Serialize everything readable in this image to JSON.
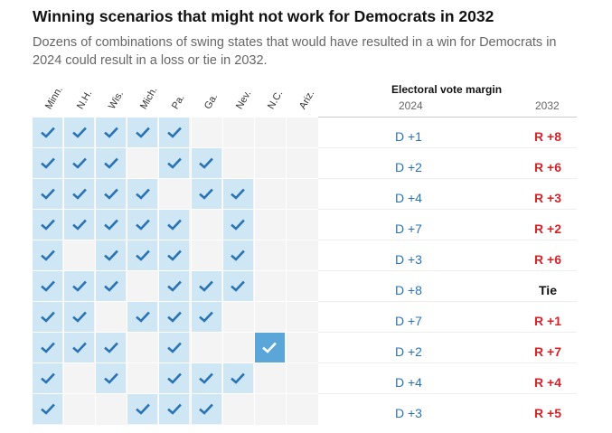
{
  "header": {
    "title": "Winning scenarios that might not work for Democrats in 2032",
    "subtitle": "Dozens of combinations of swing states that would have resulted in a win for Democrats in 2024 could result in a loss or tie in 2032."
  },
  "chart_data": {
    "type": "table",
    "states": [
      "Minn.",
      "N.H.",
      "Wis.",
      "Mich.",
      "Pa.",
      "Ga.",
      "Nev.",
      "N.C.",
      "Ariz."
    ],
    "margin_header": "Electoral vote margin",
    "columns": [
      "2024",
      "2032"
    ],
    "rows": [
      {
        "won": [
          1,
          1,
          1,
          1,
          1,
          0,
          0,
          0,
          0
        ],
        "margin_2024": "D +1",
        "margin_2032": "R +8"
      },
      {
        "won": [
          1,
          1,
          1,
          0,
          1,
          1,
          0,
          0,
          0
        ],
        "margin_2024": "D +2",
        "margin_2032": "R +6"
      },
      {
        "won": [
          1,
          1,
          1,
          1,
          0,
          1,
          1,
          0,
          0
        ],
        "margin_2024": "D +4",
        "margin_2032": "R +3"
      },
      {
        "won": [
          1,
          1,
          1,
          1,
          1,
          0,
          1,
          0,
          0
        ],
        "margin_2024": "D +7",
        "margin_2032": "R +2"
      },
      {
        "won": [
          1,
          0,
          1,
          1,
          1,
          0,
          1,
          0,
          0
        ],
        "margin_2024": "D +3",
        "margin_2032": "R +6"
      },
      {
        "won": [
          1,
          1,
          1,
          0,
          1,
          1,
          1,
          0,
          0
        ],
        "margin_2024": "D +8",
        "margin_2032": "Tie"
      },
      {
        "won": [
          1,
          1,
          0,
          1,
          1,
          1,
          0,
          0,
          0
        ],
        "margin_2024": "D +7",
        "margin_2032": "R +1"
      },
      {
        "won": [
          1,
          1,
          1,
          0,
          1,
          0,
          0,
          2,
          0
        ],
        "margin_2024": "D +2",
        "margin_2032": "R +7"
      },
      {
        "won": [
          1,
          0,
          1,
          0,
          1,
          1,
          1,
          0,
          0
        ],
        "margin_2024": "D +4",
        "margin_2032": "R +4"
      },
      {
        "won": [
          1,
          0,
          0,
          1,
          1,
          1,
          0,
          0,
          0
        ],
        "margin_2024": "D +3",
        "margin_2032": "R +5"
      }
    ],
    "colors": {
      "won_cell": "#cfe6f5",
      "won_cell_strong": "#5aa6d9",
      "empty_cell": "#f4f4f4",
      "check": "#2a73b3",
      "dem_margin": "#2a73b3",
      "rep_margin": "#d0252b"
    }
  }
}
